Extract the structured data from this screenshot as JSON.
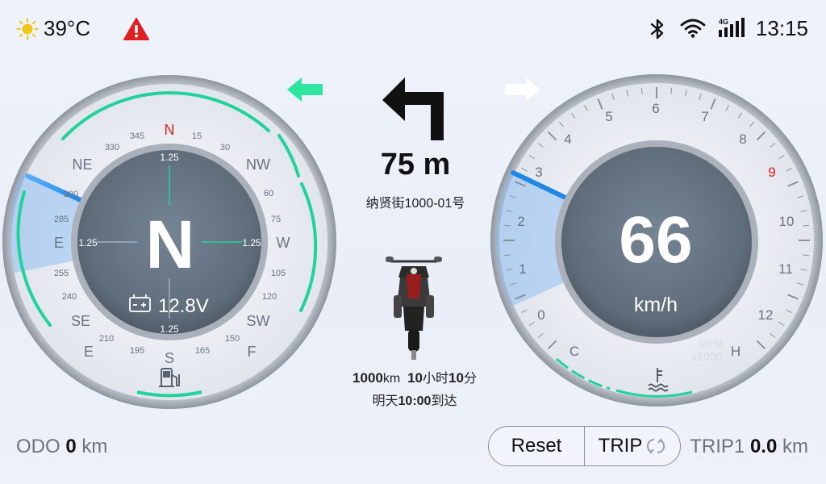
{
  "status": {
    "temperature": "39°C",
    "time": "13:15",
    "network_label": "4G",
    "icons": [
      "sun-icon",
      "warning-icon",
      "bluetooth-icon",
      "wifi-icon",
      "signal-icon"
    ],
    "warning_color": "#e02020"
  },
  "compass": {
    "heading": "N",
    "cardinals": [
      "N",
      "NW",
      "W",
      "SW",
      "S",
      "SE",
      "E",
      "NE"
    ],
    "outer_labels": {
      "N": "N",
      "NE": "NE",
      "NW": "NW",
      "E": "E",
      "W": "W",
      "SE": "SE",
      "SW": "SW",
      "E2": "E",
      "F": "F",
      "S": "S"
    },
    "degree_labels": [
      "345",
      "15",
      "330",
      "30",
      "300",
      "60",
      "285",
      "75",
      "255",
      "105",
      "240",
      "120",
      "210",
      "150",
      "195",
      "165"
    ],
    "inner_top": "1.25",
    "inner_bottom": "1.25",
    "inner_left": "1.25",
    "inner_right": "1.25",
    "battery_voltage": "12.8V",
    "accent_color": "#21d39a"
  },
  "navigation": {
    "turn": "left",
    "distance": "75 m",
    "street": "纳贤街1000-01号",
    "remaining_distance_value": "1000",
    "remaining_distance_unit": "km",
    "remaining_hours_value": "10",
    "remaining_hours_unit": "小时",
    "remaining_minutes_value": "10",
    "remaining_minutes_unit": "分",
    "arrival_prefix": "明天",
    "arrival_time": "10:00",
    "arrival_suffix": "到达",
    "left_indicator_color": "#2ee6a0",
    "right_indicator_color": "#ffffff"
  },
  "speedometer": {
    "speed": "66",
    "unit": "km/h",
    "rpm_ticks": [
      "0",
      "1",
      "2",
      "3",
      "4",
      "5",
      "6",
      "7",
      "8",
      "9",
      "10",
      "11",
      "12"
    ],
    "rpm_label_line1": "RPM",
    "rpm_label_line2": "x1000",
    "redline_tick": "9",
    "temp_cold": "C",
    "temp_hot": "H",
    "rpm_value": 3.2
  },
  "footer": {
    "odo_label": "ODO",
    "odo_value": "0",
    "odo_unit": "km",
    "reset_label": "Reset",
    "trip_label": "TRIP",
    "trip1_label": "TRIP1",
    "trip1_value": "0.0",
    "trip1_unit": "km"
  }
}
